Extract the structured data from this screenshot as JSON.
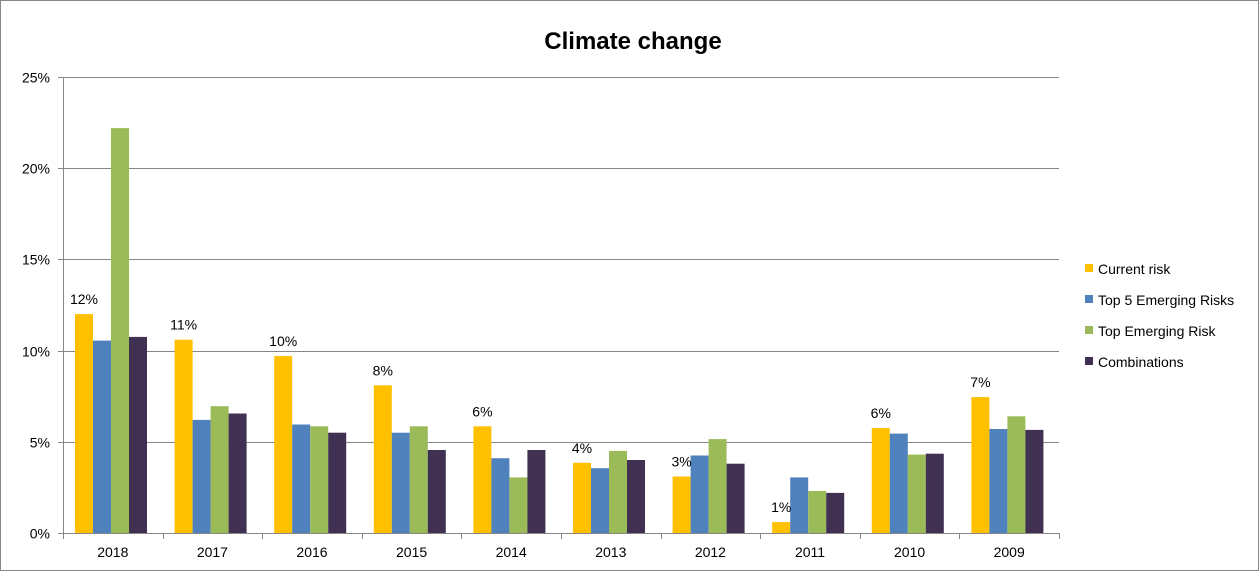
{
  "chart_data": {
    "type": "bar",
    "title": "Climate change",
    "xlabel": "",
    "ylabel": "",
    "categories": [
      "2018",
      "2017",
      "2016",
      "2015",
      "2014",
      "2013",
      "2012",
      "2011",
      "2010",
      "2009"
    ],
    "series": [
      {
        "name": "Current risk",
        "color": "#FFC000",
        "values": [
          12.0,
          10.6,
          9.7,
          8.1,
          5.85,
          3.85,
          3.1,
          0.6,
          5.75,
          7.45
        ],
        "labels": [
          "12%",
          "11%",
          "10%",
          "8%",
          "6%",
          "4%",
          "3%",
          "1%",
          "6%",
          "7%"
        ]
      },
      {
        "name": "Top 5 Emerging Risks",
        "color": "#4F81BD",
        "values": [
          10.55,
          6.2,
          5.95,
          5.5,
          4.1,
          3.55,
          4.25,
          3.05,
          5.45,
          5.7
        ]
      },
      {
        "name": "Top Emerging Risk",
        "color": "#9BBB59",
        "values": [
          22.2,
          6.95,
          5.85,
          5.85,
          3.05,
          4.5,
          5.15,
          2.3,
          4.3,
          6.4
        ]
      },
      {
        "name": "Combinations",
        "color": "#403152",
        "values": [
          10.75,
          6.55,
          5.5,
          4.55,
          4.55,
          4.0,
          3.8,
          2.2,
          4.35,
          5.65
        ]
      }
    ],
    "ylim": [
      0,
      25
    ],
    "yticks": [
      0,
      5,
      10,
      15,
      20,
      25
    ],
    "ytick_labels": [
      "0%",
      "5%",
      "10%",
      "15%",
      "20%",
      "25%"
    ],
    "grid": true,
    "legend_position": "right",
    "gridline_color": "#868686",
    "axis_color": "#868686"
  }
}
